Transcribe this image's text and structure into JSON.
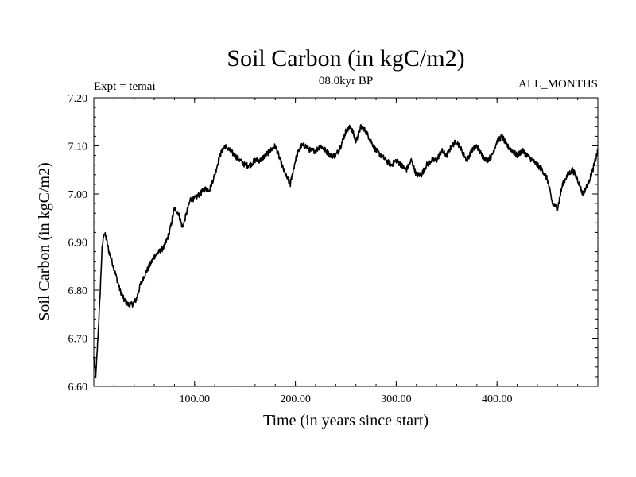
{
  "header": {
    "title": "Soil Carbon (in kgC/m2)",
    "experiment": "Expt = temai",
    "period": "08.0kyr BP",
    "months": "ALL_MONTHS"
  },
  "chart_data": {
    "type": "line",
    "title": "Soil Carbon (in kgC/m2)",
    "xlabel": "Time (in years since start)",
    "ylabel": "Soil Carbon (in kgC/m2)",
    "xlim": [
      0,
      500
    ],
    "ylim": [
      6.6,
      7.2
    ],
    "x_ticks": [
      100,
      200,
      300,
      400
    ],
    "x_tick_labels": [
      "100.00",
      "200.00",
      "300.00",
      "400.00"
    ],
    "y_ticks": [
      6.6,
      6.7,
      6.8,
      6.9,
      7.0,
      7.1,
      7.2
    ],
    "y_tick_labels": [
      "6.60",
      "6.70",
      "6.80",
      "6.90",
      "7.00",
      "7.10",
      "7.20"
    ],
    "grid": false,
    "line_color": "#000000",
    "series": [
      {
        "name": "Soil Carbon",
        "x": [
          0,
          2,
          4,
          6,
          8,
          10,
          12,
          15,
          18,
          22,
          26,
          30,
          34,
          38,
          42,
          46,
          50,
          55,
          60,
          65,
          70,
          75,
          80,
          84,
          88,
          92,
          96,
          100,
          105,
          110,
          115,
          120,
          125,
          130,
          135,
          140,
          145,
          150,
          155,
          160,
          165,
          170,
          175,
          180,
          185,
          190,
          195,
          200,
          205,
          210,
          215,
          220,
          225,
          230,
          235,
          240,
          245,
          250,
          255,
          260,
          265,
          270,
          275,
          280,
          285,
          290,
          295,
          300,
          305,
          310,
          315,
          320,
          325,
          330,
          335,
          340,
          345,
          350,
          355,
          360,
          365,
          370,
          375,
          380,
          385,
          390,
          395,
          400,
          405,
          410,
          415,
          420,
          425,
          430,
          435,
          440,
          445,
          450,
          455,
          460,
          465,
          470,
          475,
          480,
          485,
          490,
          495,
          500
        ],
        "y": [
          6.66,
          6.62,
          6.7,
          6.78,
          6.88,
          6.92,
          6.91,
          6.88,
          6.86,
          6.83,
          6.8,
          6.78,
          6.77,
          6.77,
          6.78,
          6.81,
          6.83,
          6.85,
          6.87,
          6.88,
          6.89,
          6.92,
          6.97,
          6.96,
          6.93,
          6.96,
          6.99,
          6.99,
          7.0,
          7.01,
          7.01,
          7.04,
          7.08,
          7.1,
          7.09,
          7.08,
          7.07,
          7.06,
          7.06,
          7.07,
          7.07,
          7.08,
          7.09,
          7.1,
          7.07,
          7.04,
          7.02,
          7.07,
          7.1,
          7.1,
          7.09,
          7.09,
          7.1,
          7.09,
          7.08,
          7.08,
          7.1,
          7.13,
          7.14,
          7.11,
          7.14,
          7.13,
          7.11,
          7.09,
          7.08,
          7.07,
          7.06,
          7.07,
          7.06,
          7.05,
          7.07,
          7.04,
          7.04,
          7.06,
          7.07,
          7.07,
          7.09,
          7.08,
          7.1,
          7.11,
          7.09,
          7.07,
          7.09,
          7.1,
          7.08,
          7.07,
          7.08,
          7.11,
          7.12,
          7.1,
          7.09,
          7.08,
          7.09,
          7.08,
          7.07,
          7.06,
          7.05,
          7.03,
          6.98,
          6.97,
          7.02,
          7.04,
          7.05,
          7.03,
          7.0,
          7.02,
          7.05,
          7.09
        ]
      }
    ]
  }
}
